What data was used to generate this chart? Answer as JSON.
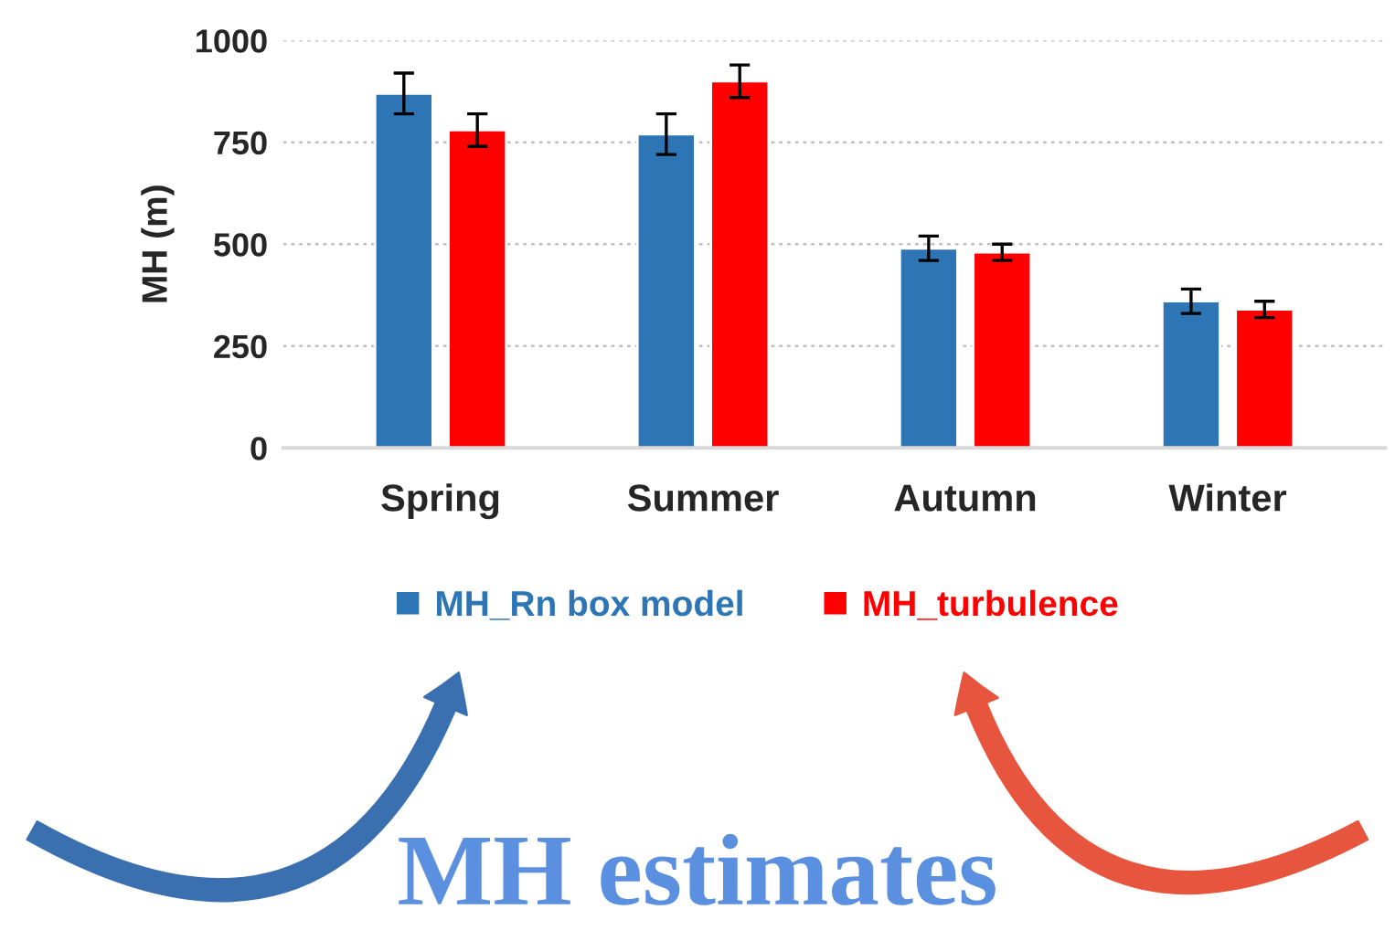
{
  "chart_data": {
    "type": "bar",
    "ylabel": "MH (m)",
    "categories": [
      "Spring",
      "Summer",
      "Autumn",
      "Winter"
    ],
    "series": [
      {
        "name": "MH_Rn box model",
        "color": "#2e75b6",
        "values": [
          870,
          770,
          490,
          360
        ],
        "errors": [
          50,
          50,
          30,
          30
        ]
      },
      {
        "name": "MH_turbulence",
        "color": "#ff0000",
        "values": [
          780,
          900,
          480,
          340
        ],
        "errors": [
          40,
          40,
          20,
          20
        ]
      }
    ],
    "ylim": [
      0,
      1000
    ],
    "yticks": [
      0,
      250,
      500,
      750,
      1000
    ],
    "grid": "y",
    "legend": "bottom",
    "annotations": [
      "MH estimates"
    ]
  }
}
